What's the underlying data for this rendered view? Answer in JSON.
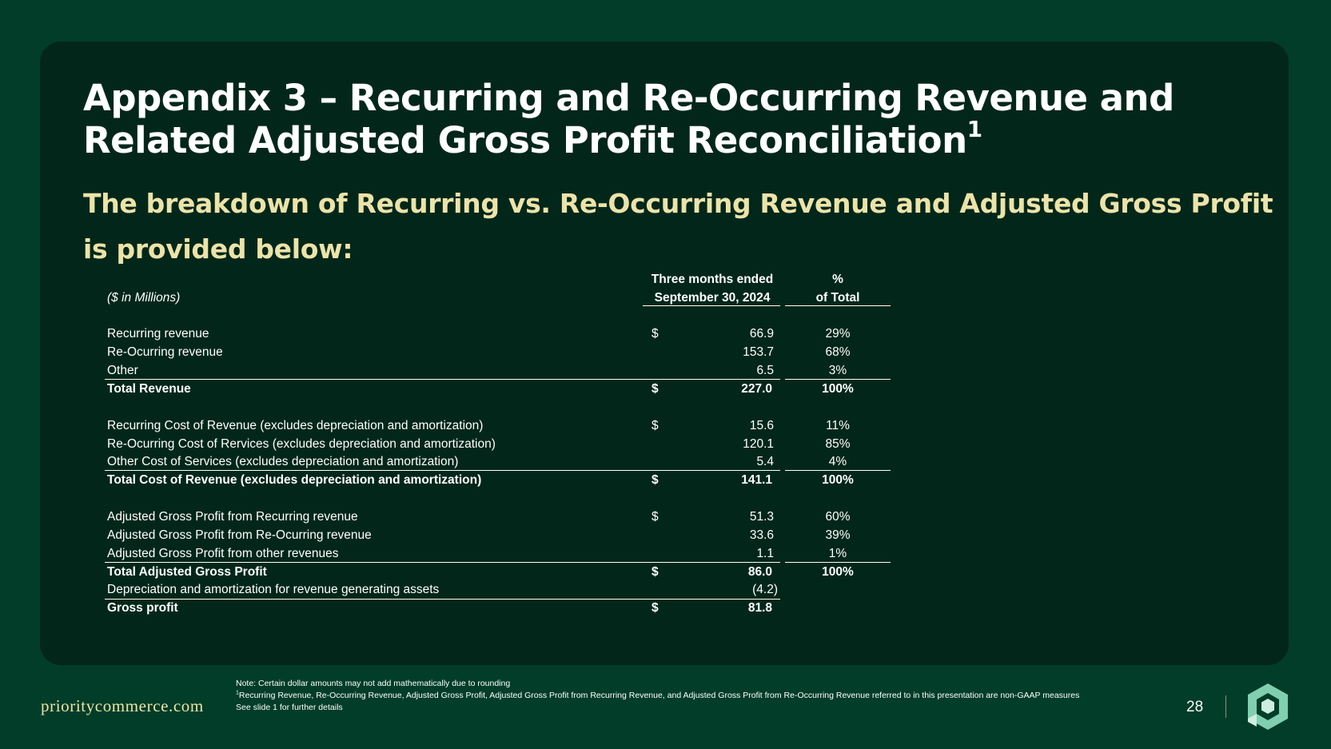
{
  "slide": {
    "title": "Appendix 3 – Recurring and Re-Occurring Revenue and Related Adjusted Gross Profit Reconciliation",
    "title_superscript": "1",
    "subtitle": "The breakdown of Recurring vs. Re-Occurring Revenue and Adjusted Gross Profit is provided below:"
  },
  "table": {
    "units_label": "($ in Millions)",
    "col_period_line1": "Three months ended",
    "col_period_line2": "September 30, 2024",
    "col_pct_line1": "%",
    "col_pct_line2": "of Total",
    "rows": [
      {
        "label": "Recurring revenue",
        "currency": "$",
        "value": "66.9",
        "pct": "29%"
      },
      {
        "label": "Re-Ocurring revenue",
        "currency": "",
        "value": "153.7",
        "pct": "68%"
      },
      {
        "label": "Other",
        "currency": "",
        "value": "6.5",
        "pct": "3%"
      },
      {
        "label": "Total Revenue",
        "currency": "$",
        "value": "227.0",
        "pct": "100%"
      },
      {
        "label": "Recurring Cost of Revenue (excludes depreciation and amortization)",
        "currency": "$",
        "value": "15.6",
        "pct": "11%"
      },
      {
        "label": "Re-Ocurring Cost of Rervices (excludes depreciation and amortization)",
        "currency": "",
        "value": "120.1",
        "pct": "85%"
      },
      {
        "label": "Other Cost of Services (excludes depreciation and amortization)",
        "currency": "",
        "value": "5.4",
        "pct": "4%"
      },
      {
        "label": "Total Cost of Revenue (excludes depreciation and amortization)",
        "currency": "$",
        "value": "141.1",
        "pct": "100%"
      },
      {
        "label": "Adjusted Gross Profit from Recurring revenue",
        "currency": "$",
        "value": "51.3",
        "pct": "60%"
      },
      {
        "label": "Adjusted Gross Profit from Re-Ocurring revenue",
        "currency": "",
        "value": "33.6",
        "pct": "39%"
      },
      {
        "label": "Adjusted Gross Profit from other revenues",
        "currency": "",
        "value": "1.1",
        "pct": "1%"
      },
      {
        "label": "Total Adjusted Gross Profit",
        "currency": "$",
        "value": "86.0",
        "pct": "100%"
      },
      {
        "label": "Depreciation and amortization for revenue generating assets",
        "currency": "",
        "value": "(4.2)",
        "pct": ""
      },
      {
        "label": "Gross profit",
        "currency": "$",
        "value": "81.8",
        "pct": ""
      }
    ]
  },
  "footer": {
    "brand": "prioritycommerce.com",
    "note1": "Note: Certain dollar amounts may not add mathematically due to rounding",
    "note2_sup": "1",
    "note2": "Recurring Revenue,  Re-Occurring Revenue, Adjusted Gross Profit, Adjusted Gross Profit from Recurring Revenue, and Adjusted Gross Profit from Re-Occurring Revenue referred to in this presentation are non-GAAP measures",
    "note3": "See slide 1 for further details",
    "page_number": "28"
  },
  "colors": {
    "background": "#013d28",
    "card": "#02271a",
    "subtitle": "#ece3a9",
    "logo_light": "#7fcfb0"
  }
}
